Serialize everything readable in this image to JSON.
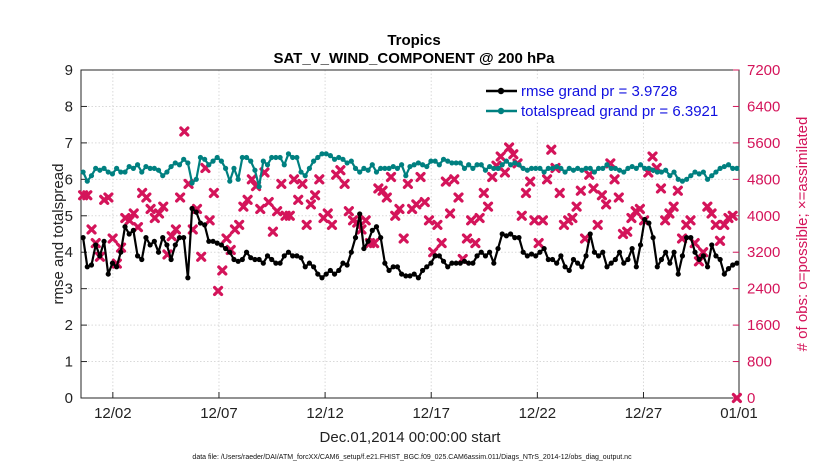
{
  "chart_data": {
    "type": "line",
    "title": "Tropics",
    "subtitle": "SAT_V_WIND_COMPONENT @ 200 hPa",
    "xlabel": "Dec.01,2014 00:00:00 start",
    "ylabel": "rmse and totalspread",
    "y2label": "# of obs: o=possible; ×=assimilated",
    "xlim": [
      0.5,
      31.5
    ],
    "ylim": [
      0,
      9
    ],
    "y2lim": [
      0,
      7200
    ],
    "x_tick_values": [
      2,
      7,
      12,
      17,
      22,
      27,
      32
    ],
    "x_tick_labels": [
      "12/02",
      "12/07",
      "12/12",
      "12/17",
      "12/22",
      "12/27",
      "01/01"
    ],
    "y_ticks": [
      "0",
      "1",
      "2",
      "3",
      "4",
      "5",
      "6",
      "7",
      "8",
      "9"
    ],
    "y2_ticks": [
      "0",
      "800",
      "1600",
      "2400",
      "3200",
      "4000",
      "4800",
      "5600",
      "6400",
      "7200"
    ],
    "grid": true,
    "legend_position": "top-right",
    "colors": {
      "rmse": "#000000",
      "spread": "#008080",
      "obs": "#d4145a",
      "legend_text": "#1010e0"
    },
    "series": [
      {
        "name": "rmse grand pr = 3.9728",
        "axis": "left",
        "values": [
          4.4,
          3.6,
          3.65,
          4.2,
          3.9,
          4.3,
          3.4,
          3.7,
          3.6,
          4.0,
          4.7,
          4.5,
          4.6,
          3.9,
          3.8,
          4.4,
          4.2,
          4.3,
          4.0,
          4.4,
          4.2,
          3.8,
          4.2,
          4.4,
          4.4,
          3.3,
          5.2,
          5.1,
          4.8,
          4.75,
          4.3,
          4.3,
          4.25,
          4.2,
          4.1,
          4.0,
          3.8,
          3.75,
          3.8,
          4.0,
          3.85,
          3.8,
          3.8,
          3.7,
          3.9,
          3.8,
          3.7,
          3.7,
          3.9,
          4.0,
          3.9,
          3.9,
          3.85,
          3.6,
          3.7,
          3.6,
          3.4,
          3.3,
          3.4,
          3.5,
          3.4,
          3.5,
          3.7,
          3.65,
          4.0,
          4.4,
          5.05,
          4.1,
          4.3,
          4.6,
          4.7,
          4.4,
          3.7,
          3.5,
          3.6,
          3.6,
          3.4,
          3.35,
          3.35,
          3.4,
          3.3,
          3.5,
          3.6,
          3.7,
          3.9,
          3.9,
          3.75,
          3.6,
          3.7,
          3.7,
          3.7,
          3.75,
          3.7,
          3.7,
          3.9,
          4.0,
          3.9,
          4.0,
          3.7,
          4.1,
          4.5,
          4.45,
          4.5,
          4.4,
          4.4,
          4.0,
          3.9,
          3.95,
          3.9,
          4.0,
          4.1,
          3.8,
          3.8,
          3.7,
          3.9,
          3.6,
          3.5,
          3.8,
          3.7,
          3.6,
          3.9,
          4.5,
          4.0,
          3.9,
          4.0,
          3.6,
          3.7,
          3.8,
          4.0,
          3.7,
          3.8,
          4.1,
          3.6,
          4.2,
          4.9,
          4.8,
          4.4,
          3.6,
          3.8,
          4.0,
          3.7,
          4.0,
          3.4,
          3.9,
          4.4,
          4.4,
          4.0,
          3.8,
          3.9,
          3.6,
          4.2,
          3.9,
          3.8,
          3.4,
          3.55,
          3.65,
          3.7
        ]
      },
      {
        "name": "totalspread grand pr = 6.3921",
        "axis": "left",
        "values": [
          6.2,
          5.95,
          6.1,
          6.3,
          6.25,
          6.3,
          6.2,
          6.15,
          6.3,
          6.2,
          6.2,
          6.35,
          6.3,
          6.4,
          6.2,
          6.35,
          6.3,
          6.3,
          6.25,
          6.1,
          6.2,
          6.35,
          6.45,
          6.4,
          6.55,
          6.45,
          5.9,
          6.0,
          6.6,
          6.55,
          6.4,
          6.5,
          6.6,
          6.5,
          6.3,
          5.95,
          6.3,
          6.0,
          6.6,
          6.6,
          6.5,
          6.25,
          5.8,
          6.5,
          6.4,
          6.6,
          6.6,
          6.6,
          6.4,
          6.7,
          6.6,
          6.6,
          6.2,
          6.1,
          6.3,
          6.5,
          6.6,
          6.7,
          6.7,
          6.65,
          6.55,
          6.6,
          6.55,
          6.45,
          6.5,
          6.3,
          6.2,
          6.3,
          6.25,
          6.4,
          6.2,
          6.3,
          6.3,
          6.3,
          6.35,
          6.3,
          6.4,
          6.1,
          6.35,
          6.4,
          6.45,
          6.4,
          6.35,
          6.5,
          6.5,
          6.4,
          6.55,
          6.5,
          6.45,
          6.45,
          6.45,
          6.3,
          6.4,
          6.3,
          6.4,
          6.4,
          6.25,
          6.35,
          6.3,
          6.3,
          6.4,
          6.5,
          6.4,
          6.45,
          6.4,
          6.3,
          6.25,
          6.3,
          6.3,
          6.3,
          6.2,
          6.3,
          6.3,
          6.35,
          6.3,
          6.2,
          6.3,
          6.25,
          6.3,
          6.25,
          6.3,
          6.3,
          6.2,
          6.3,
          6.3,
          6.4,
          6.3,
          6.3,
          6.25,
          6.2,
          6.3,
          6.35,
          6.3,
          6.4,
          6.3,
          6.3,
          6.25,
          6.2,
          6.2,
          6.25,
          6.1,
          6.2,
          6.0,
          5.95,
          6.0,
          6.1,
          6.2,
          6.15,
          6.2,
          6.0,
          6.1,
          6.2,
          6.3,
          6.35,
          6.4,
          6.3,
          6.3
        ]
      },
      {
        "name": "obs assimilated",
        "axis": "right",
        "marker": "x",
        "values": [
          4450,
          4450,
          3700,
          3400,
          3100,
          4350,
          4400,
          3500,
          2950,
          3300,
          3950,
          3900,
          4050,
          3750,
          4500,
          4400,
          4150,
          3950,
          4050,
          4200,
          3150,
          3550,
          3700,
          4400,
          5850,
          4700,
          3700,
          4150,
          3100,
          5050,
          3900,
          4500,
          2350,
          2800,
          3500,
          3250,
          3700,
          3800,
          4200,
          4350,
          4800,
          4650,
          4150,
          4950,
          4300,
          3650,
          4100,
          4700,
          4000,
          4000,
          4800,
          4350,
          4700,
          3800,
          4250,
          4450,
          4800,
          3950,
          4050,
          3800,
          4900,
          5000,
          4700,
          4100,
          3900,
          3850,
          3700,
          3900,
          3400,
          3400,
          4600,
          4550,
          4400,
          4850,
          4000,
          4150,
          3500,
          4700,
          4150,
          4250,
          4850,
          4300,
          3900,
          3200,
          3800,
          3400,
          4750,
          4050,
          4800,
          4400,
          3050,
          3500,
          3900,
          3400,
          3950,
          4500,
          4200,
          4850,
          5100,
          5300,
          4950,
          5500,
          5350,
          5150,
          4000,
          4500,
          4750,
          3900,
          3400,
          3900,
          4800,
          5450,
          5050,
          4500,
          3800,
          3900,
          3950,
          4200,
          4550,
          3500,
          4900,
          4600,
          3800,
          4450,
          4250,
          5150,
          4800,
          4400,
          3600,
          3650,
          3950,
          4100,
          4150,
          3900,
          4950,
          5300,
          5050,
          4600,
          3900,
          4050,
          4200,
          4550,
          3500,
          3800,
          3900,
          3400,
          3000,
          3200,
          4200,
          4050,
          3800,
          3450,
          3800,
          3950,
          4000,
          0
        ]
      }
    ]
  },
  "footer": "data file: /Users/raeder/DAI/ATM_forcXX/CAM6_setup/f.e21.FHIST_BGC.f09_025.CAM6assim.011/Diags_NTrS_2014-12/obs_diag_output.nc"
}
